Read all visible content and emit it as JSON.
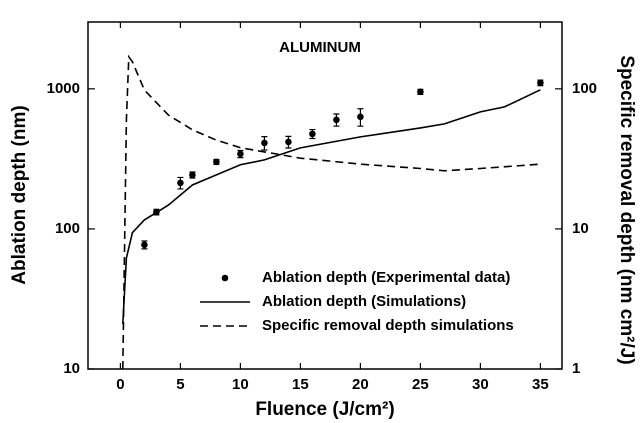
{
  "chart_data": {
    "type": "line",
    "annotation": "ALUMINUM",
    "xlabel": "Fluence (J/cm²)",
    "ylabel": "Ablation depth (nm)",
    "y2label": "Specific removal depth (nm cm²/J)",
    "xlim": [
      -2.7,
      36.8
    ],
    "xticks": [
      0,
      5,
      10,
      15,
      20,
      25,
      30,
      35
    ],
    "ylim": [
      10,
      3000
    ],
    "yticks": [
      10,
      100,
      1000
    ],
    "yscale": "log",
    "y2lim": [
      1,
      300
    ],
    "y2ticks": [
      1,
      10,
      100
    ],
    "y2scale": "log",
    "legend": "lower right",
    "series": [
      {
        "name": "Ablation depth (Experimental data)",
        "style": "markers",
        "color": "#000000",
        "x": [
          2,
          3,
          5,
          6,
          8,
          10,
          12,
          14,
          16,
          18,
          20,
          25,
          35
        ],
        "values": [
          77,
          132,
          213,
          243,
          301,
          343,
          411,
          418,
          477,
          601,
          631,
          952,
          1104
        ],
        "errors": [
          5,
          6,
          20,
          12,
          12,
          20,
          45,
          40,
          35,
          60,
          90,
          40,
          50
        ]
      },
      {
        "name": "Ablation depth (Simulations)",
        "style": "solid",
        "color": "#000000",
        "x": [
          0.2,
          0.5,
          1,
          2,
          4,
          6,
          8,
          10,
          12,
          15,
          20,
          25,
          27,
          30,
          32,
          35
        ],
        "values": [
          21,
          62,
          94,
          116,
          148,
          206,
          243,
          287,
          311,
          379,
          454,
          526,
          562,
          685,
          743,
          984
        ]
      },
      {
        "name": "Specific removal depth simulations",
        "style": "dashed",
        "color": "#000000",
        "axis": "y2",
        "x": [
          0.2,
          0.5,
          0.7,
          1,
          2,
          4,
          6,
          8,
          10,
          15,
          20,
          25,
          27,
          30,
          35
        ],
        "values": [
          1,
          60,
          169,
          156,
          98,
          65,
          51,
          43,
          38,
          32,
          29,
          27,
          26,
          27,
          29
        ]
      }
    ]
  }
}
